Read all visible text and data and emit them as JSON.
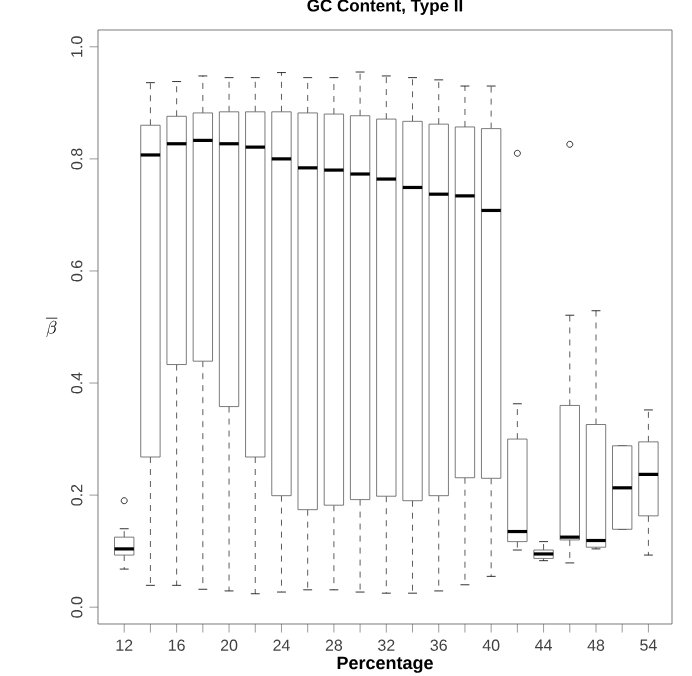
{
  "chart_data": {
    "type": "box",
    "title": "GC Content, Type II",
    "xlabel": "Percentage",
    "ylabel": "\\overline{\\beta}",
    "categories": [
      "12",
      null,
      "16",
      null,
      "20",
      null,
      "24",
      null,
      "28",
      null,
      "32",
      null,
      "36",
      null,
      "40",
      null,
      "44",
      null,
      "48",
      null,
      "54"
    ],
    "ylim": [
      -0.03,
      1.03
    ],
    "yticks": [
      {
        "value": 0,
        "label": "0.0"
      },
      {
        "value": 0.2,
        "label": "0.2"
      },
      {
        "value": 0.4,
        "label": "0.4"
      },
      {
        "value": 0.6,
        "label": "0.6"
      },
      {
        "value": 0.8,
        "label": "0.8"
      },
      {
        "value": 1,
        "label": "1.0"
      }
    ],
    "grid": false,
    "boxes": [
      {
        "low": 0.068,
        "q1": 0.093,
        "median": 0.104,
        "q3": 0.125,
        "high": 0.14,
        "outliers": [
          0.19
        ]
      },
      {
        "low": 0.039,
        "q1": 0.268,
        "median": 0.807,
        "q3": 0.86,
        "high": 0.936
      },
      {
        "low": 0.039,
        "q1": 0.433,
        "median": 0.827,
        "q3": 0.876,
        "high": 0.938
      },
      {
        "low": 0.032,
        "q1": 0.439,
        "median": 0.833,
        "q3": 0.882,
        "high": 0.948
      },
      {
        "low": 0.029,
        "q1": 0.358,
        "median": 0.827,
        "q3": 0.884,
        "high": 0.945
      },
      {
        "low": 0.024,
        "q1": 0.268,
        "median": 0.821,
        "q3": 0.884,
        "high": 0.945
      },
      {
        "low": 0.027,
        "q1": 0.199,
        "median": 0.8,
        "q3": 0.884,
        "high": 0.954
      },
      {
        "low": 0.031,
        "q1": 0.174,
        "median": 0.784,
        "q3": 0.882,
        "high": 0.945
      },
      {
        "low": 0.031,
        "q1": 0.182,
        "median": 0.78,
        "q3": 0.88,
        "high": 0.945
      },
      {
        "low": 0.027,
        "q1": 0.192,
        "median": 0.773,
        "q3": 0.877,
        "high": 0.955
      },
      {
        "low": 0.025,
        "q1": 0.198,
        "median": 0.764,
        "q3": 0.871,
        "high": 0.948
      },
      {
        "low": 0.025,
        "q1": 0.19,
        "median": 0.749,
        "q3": 0.867,
        "high": 0.945
      },
      {
        "low": 0.029,
        "q1": 0.199,
        "median": 0.737,
        "q3": 0.862,
        "high": 0.941
      },
      {
        "low": 0.04,
        "q1": 0.231,
        "median": 0.734,
        "q3": 0.857,
        "high": 0.93
      },
      {
        "low": 0.055,
        "q1": 0.23,
        "median": 0.708,
        "q3": 0.854,
        "high": 0.93
      },
      {
        "low": 0.102,
        "q1": 0.117,
        "median": 0.135,
        "q3": 0.3,
        "high": 0.363,
        "outliers": [
          0.81
        ]
      },
      {
        "low": 0.083,
        "q1": 0.087,
        "median": 0.095,
        "q3": 0.102,
        "high": 0.117
      },
      {
        "low": 0.079,
        "q1": 0.12,
        "median": 0.125,
        "q3": 0.36,
        "high": 0.521,
        "outliers": [
          0.826
        ]
      },
      {
        "low": 0.104,
        "q1": 0.107,
        "median": 0.119,
        "q3": 0.326,
        "high": 0.529
      },
      {
        "low": 0.139,
        "q1": 0.139,
        "median": 0.213,
        "q3": 0.288,
        "high": 0.288
      },
      {
        "low": 0.093,
        "q1": 0.163,
        "median": 0.237,
        "q3": 0.295,
        "high": 0.352
      }
    ]
  }
}
